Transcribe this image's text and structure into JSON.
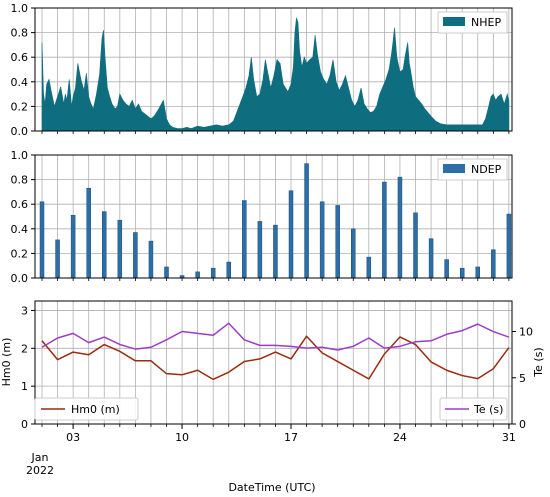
{
  "chart_data": [
    {
      "type": "area",
      "legend": "top-right",
      "grid": true,
      "ylim": [
        0,
        1.0
      ],
      "yticks": [
        "0.0",
        "0.2",
        "0.4",
        "0.6",
        "0.8",
        "1.0"
      ],
      "series": [
        {
          "name": "NHEP",
          "color": "#0e6e80",
          "x": [
            1.0,
            1.1,
            1.2,
            1.3,
            1.45,
            1.6,
            1.8,
            2.0,
            2.2,
            2.4,
            2.5,
            2.6,
            2.75,
            2.9,
            3.0,
            3.15,
            3.3,
            3.5,
            3.7,
            3.85,
            4.0,
            4.15,
            4.3,
            4.5,
            4.7,
            4.85,
            4.95,
            5.05,
            5.2,
            5.35,
            5.5,
            5.7,
            5.85,
            6.0,
            6.2,
            6.4,
            6.6,
            6.8,
            7.0,
            7.2,
            7.4,
            7.6,
            7.8,
            8.0,
            8.2,
            8.5,
            8.8,
            9.0,
            9.2,
            9.4,
            9.7,
            10.0,
            10.3,
            10.6,
            11.0,
            11.4,
            11.8,
            12.2,
            12.6,
            13.0,
            13.3,
            13.6,
            13.9,
            14.1,
            14.3,
            14.45,
            14.6,
            14.8,
            15.0,
            15.2,
            15.35,
            15.5,
            15.7,
            15.9,
            16.1,
            16.3,
            16.5,
            16.8,
            17.0,
            17.15,
            17.25,
            17.35,
            17.45,
            17.55,
            17.7,
            17.85,
            18.0,
            18.2,
            18.4,
            18.55,
            18.7,
            18.9,
            19.1,
            19.3,
            19.5,
            19.7,
            19.9,
            20.1,
            20.3,
            20.5,
            20.7,
            20.9,
            21.1,
            21.3,
            21.5,
            21.7,
            21.9,
            22.1,
            22.3,
            22.5,
            22.7,
            22.9,
            23.1,
            23.3,
            23.45,
            23.55,
            23.65,
            23.8,
            24.0,
            24.2,
            24.35,
            24.5,
            24.6,
            24.7,
            24.85,
            25.0,
            25.2,
            25.4,
            25.6,
            25.8,
            26.0,
            26.3,
            26.6,
            27.0,
            27.4,
            27.8,
            28.2,
            28.6,
            29.0,
            29.3,
            29.5,
            29.7,
            29.85,
            30.0,
            30.15,
            30.3,
            30.5,
            30.7,
            30.9,
            31.0
          ],
          "values": [
            0.72,
            0.3,
            0.22,
            0.38,
            0.42,
            0.32,
            0.2,
            0.28,
            0.36,
            0.22,
            0.3,
            0.25,
            0.42,
            0.2,
            0.28,
            0.35,
            0.55,
            0.42,
            0.33,
            0.47,
            0.28,
            0.22,
            0.18,
            0.3,
            0.46,
            0.75,
            0.82,
            0.6,
            0.35,
            0.28,
            0.22,
            0.18,
            0.2,
            0.3,
            0.25,
            0.22,
            0.2,
            0.25,
            0.18,
            0.22,
            0.16,
            0.14,
            0.12,
            0.1,
            0.12,
            0.18,
            0.25,
            0.1,
            0.05,
            0.03,
            0.02,
            0.02,
            0.03,
            0.02,
            0.04,
            0.03,
            0.04,
            0.05,
            0.04,
            0.05,
            0.08,
            0.18,
            0.28,
            0.35,
            0.45,
            0.6,
            0.42,
            0.28,
            0.3,
            0.42,
            0.58,
            0.48,
            0.35,
            0.45,
            0.58,
            0.55,
            0.38,
            0.32,
            0.38,
            0.52,
            0.8,
            0.92,
            0.88,
            0.65,
            0.52,
            0.6,
            0.55,
            0.58,
            0.6,
            0.78,
            0.62,
            0.48,
            0.42,
            0.38,
            0.45,
            0.58,
            0.4,
            0.33,
            0.38,
            0.45,
            0.35,
            0.25,
            0.2,
            0.25,
            0.35,
            0.22,
            0.18,
            0.15,
            0.16,
            0.2,
            0.3,
            0.36,
            0.42,
            0.5,
            0.62,
            0.72,
            0.84,
            0.6,
            0.48,
            0.5,
            0.62,
            0.72,
            0.55,
            0.48,
            0.36,
            0.28,
            0.25,
            0.22,
            0.18,
            0.15,
            0.12,
            0.08,
            0.06,
            0.05,
            0.05,
            0.05,
            0.05,
            0.05,
            0.05,
            0.05,
            0.1,
            0.2,
            0.28,
            0.3,
            0.25,
            0.28,
            0.3,
            0.22,
            0.3,
            0.24
          ]
        }
      ]
    },
    {
      "type": "bar",
      "legend": "top-right",
      "grid": true,
      "ylim": [
        0,
        1.0
      ],
      "yticks": [
        "0.0",
        "0.2",
        "0.4",
        "0.6",
        "0.8",
        "1.0"
      ],
      "series": [
        {
          "name": "NDEP",
          "color": "#2e6ea6",
          "x": [
            1,
            2,
            3,
            4,
            5,
            6,
            7,
            8,
            9,
            10,
            11,
            12,
            13,
            14,
            15,
            16,
            17,
            18,
            19,
            20,
            21,
            22,
            23,
            24,
            25,
            26,
            27,
            28,
            29,
            30,
            31
          ],
          "values": [
            0.62,
            0.31,
            0.51,
            0.73,
            0.54,
            0.47,
            0.37,
            0.3,
            0.09,
            0.02,
            0.05,
            0.08,
            0.13,
            0.63,
            0.46,
            0.43,
            0.71,
            0.93,
            0.62,
            0.59,
            0.4,
            0.17,
            0.78,
            0.82,
            0.53,
            0.32,
            0.15,
            0.08,
            0.09,
            0.23,
            0.52
          ]
        }
      ]
    },
    {
      "type": "line",
      "legend": "bottom-left / bottom-right",
      "grid": true,
      "x_axis": {
        "label": "DateTime (UTC)",
        "range": [
          0.55,
          31.2
        ],
        "ticks": [
          {
            "x": 3,
            "label": "03"
          },
          {
            "x": 10,
            "label": "10"
          },
          {
            "x": 17,
            "label": "17"
          },
          {
            "x": 24,
            "label": "24"
          },
          {
            "x": 31,
            "label": "31"
          }
        ],
        "month_label": "Jan",
        "year_label": "2022"
      },
      "y_left": {
        "label": "Hm0 (m)",
        "ylim": [
          0,
          3.25
        ],
        "ticks": [
          "0",
          "1",
          "2",
          "3"
        ]
      },
      "y_right": {
        "label": "Te (s)",
        "ylim": [
          0,
          13.3
        ],
        "ticks": [
          "0",
          "5",
          "10"
        ]
      },
      "series": [
        {
          "name": "Hm0 (m)",
          "axis": "left",
          "color": "#9c2a0e",
          "x": [
            1,
            2,
            3,
            4,
            5,
            6,
            7,
            8,
            9,
            10,
            11,
            12,
            13,
            14,
            15,
            16,
            17,
            18,
            19,
            20,
            21,
            22,
            23,
            24,
            25,
            26,
            27,
            28,
            29,
            30,
            31
          ],
          "values": [
            2.2,
            1.7,
            1.9,
            1.83,
            2.1,
            1.92,
            1.67,
            1.67,
            1.33,
            1.3,
            1.42,
            1.18,
            1.37,
            1.65,
            1.72,
            1.9,
            1.72,
            2.32,
            1.88,
            1.65,
            1.42,
            1.19,
            1.85,
            2.3,
            2.1,
            1.64,
            1.42,
            1.28,
            1.2,
            1.46,
            2.02
          ]
        },
        {
          "name": "Te (s)",
          "axis": "right",
          "color": "#9d3cc7",
          "x": [
            1,
            2,
            3,
            4,
            5,
            6,
            7,
            8,
            9,
            10,
            11,
            12,
            13,
            14,
            15,
            16,
            17,
            18,
            19,
            20,
            21,
            22,
            23,
            24,
            25,
            26,
            27,
            28,
            29,
            30,
            31
          ],
          "values": [
            8.3,
            9.3,
            9.8,
            8.8,
            9.4,
            8.6,
            8.1,
            8.3,
            9.1,
            10,
            9.8,
            9.6,
            10.9,
            9.1,
            8.5,
            8.5,
            8.4,
            8.2,
            8.3,
            8.0,
            8.4,
            9.3,
            8.2,
            8.4,
            8.9,
            9.0,
            9.7,
            10.1,
            10.8,
            10.0,
            9.4
          ]
        }
      ]
    }
  ]
}
